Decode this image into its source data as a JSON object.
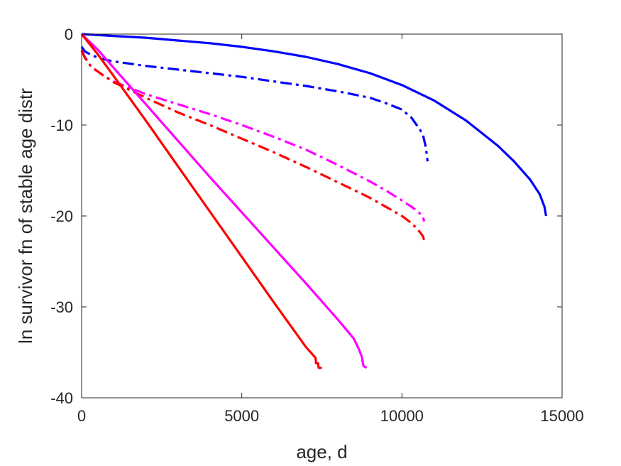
{
  "chart_data": {
    "type": "line",
    "xlabel": "age, d",
    "ylabel": "ln survivor fn of stable age distr",
    "xlim": [
      0,
      15000
    ],
    "ylim": [
      -40,
      0
    ],
    "xticks": [
      0,
      5000,
      10000,
      15000
    ],
    "xtick_labels": [
      "0",
      "5000",
      "10000",
      "15000"
    ],
    "yticks": [
      0,
      -10,
      -20,
      -30,
      -40
    ],
    "ytick_labels": [
      "0",
      "-10",
      "-20",
      "-30",
      "-40"
    ],
    "grid": false,
    "legend": "none",
    "series": [
      {
        "color": "#0000ff",
        "style": "solid",
        "points": [
          [
            0,
            0
          ],
          [
            1000,
            -0.2
          ],
          [
            2000,
            -0.4
          ],
          [
            3000,
            -0.7
          ],
          [
            4000,
            -1.0
          ],
          [
            5000,
            -1.4
          ],
          [
            6000,
            -1.9
          ],
          [
            7000,
            -2.5
          ],
          [
            8000,
            -3.3
          ],
          [
            9000,
            -4.3
          ],
          [
            10000,
            -5.6
          ],
          [
            11000,
            -7.3
          ],
          [
            12000,
            -9.5
          ],
          [
            13000,
            -12.3
          ],
          [
            13500,
            -14.0
          ],
          [
            14000,
            -16.0
          ],
          [
            14300,
            -17.6
          ],
          [
            14450,
            -19.0
          ],
          [
            14500,
            -20.0
          ]
        ]
      },
      {
        "color": "#0000ff",
        "style": "dashdot",
        "points": [
          [
            0,
            -1.4
          ],
          [
            100,
            -1.9
          ],
          [
            300,
            -2.3
          ],
          [
            600,
            -2.7
          ],
          [
            1000,
            -3.0
          ],
          [
            2000,
            -3.5
          ],
          [
            3000,
            -3.9
          ],
          [
            4000,
            -4.3
          ],
          [
            5000,
            -4.7
          ],
          [
            6000,
            -5.2
          ],
          [
            7000,
            -5.7
          ],
          [
            8000,
            -6.3
          ],
          [
            9000,
            -7.0
          ],
          [
            9500,
            -7.6
          ],
          [
            10000,
            -8.3
          ],
          [
            10300,
            -9.2
          ],
          [
            10500,
            -10.2
          ],
          [
            10650,
            -11.0
          ],
          [
            10750,
            -12.5
          ],
          [
            10800,
            -14.0
          ]
        ]
      },
      {
        "color": "#ff00ff",
        "style": "dashdot",
        "points": [
          [
            0,
            -1.8
          ],
          [
            100,
            -2.5
          ],
          [
            300,
            -3.6
          ],
          [
            700,
            -4.6
          ],
          [
            1000,
            -5.2
          ],
          [
            2000,
            -6.6
          ],
          [
            3000,
            -7.7
          ],
          [
            4000,
            -8.8
          ],
          [
            5000,
            -10.0
          ],
          [
            6000,
            -11.3
          ],
          [
            7000,
            -12.7
          ],
          [
            8000,
            -14.4
          ],
          [
            9000,
            -16.2
          ],
          [
            9500,
            -17.2
          ],
          [
            10000,
            -18.3
          ],
          [
            10300,
            -19.0
          ],
          [
            10500,
            -19.5
          ],
          [
            10650,
            -20.1
          ],
          [
            10700,
            -20.6
          ]
        ]
      },
      {
        "color": "#ff0000",
        "style": "dashdot",
        "points": [
          [
            0,
            -1.8
          ],
          [
            100,
            -2.6
          ],
          [
            300,
            -3.6
          ],
          [
            700,
            -4.6
          ],
          [
            1000,
            -5.3
          ],
          [
            2000,
            -7.0
          ],
          [
            3000,
            -8.6
          ],
          [
            4000,
            -10.0
          ],
          [
            5000,
            -11.5
          ],
          [
            6000,
            -13.0
          ],
          [
            7000,
            -14.6
          ],
          [
            8000,
            -16.3
          ],
          [
            9000,
            -18.0
          ],
          [
            9500,
            -19.0
          ],
          [
            10000,
            -20.0
          ],
          [
            10300,
            -20.8
          ],
          [
            10500,
            -21.5
          ],
          [
            10650,
            -22.2
          ],
          [
            10700,
            -22.7
          ]
        ]
      },
      {
        "color": "#ff00ff",
        "style": "solid",
        "points": [
          [
            0,
            0
          ],
          [
            500,
            -1.7
          ],
          [
            1000,
            -3.7
          ],
          [
            2000,
            -7.7
          ],
          [
            3000,
            -11.7
          ],
          [
            4000,
            -15.7
          ],
          [
            5000,
            -19.6
          ],
          [
            6000,
            -23.5
          ],
          [
            7000,
            -27.4
          ],
          [
            8000,
            -31.4
          ],
          [
            8500,
            -33.5
          ],
          [
            8650,
            -34.6
          ],
          [
            8750,
            -35.5
          ],
          [
            8800,
            -36.5
          ],
          [
            8900,
            -36.7
          ]
        ]
      },
      {
        "color": "#ff0000",
        "style": "solid",
        "points": [
          [
            0,
            0
          ],
          [
            500,
            -2.2
          ],
          [
            1000,
            -4.6
          ],
          [
            2000,
            -9.5
          ],
          [
            3000,
            -14.5
          ],
          [
            4000,
            -19.5
          ],
          [
            5000,
            -24.5
          ],
          [
            6000,
            -29.5
          ],
          [
            7000,
            -34.4
          ],
          [
            7200,
            -35.2
          ],
          [
            7300,
            -35.6
          ],
          [
            7320,
            -36.2
          ],
          [
            7380,
            -36.2
          ],
          [
            7400,
            -36.7
          ],
          [
            7500,
            -36.7
          ]
        ]
      }
    ]
  }
}
